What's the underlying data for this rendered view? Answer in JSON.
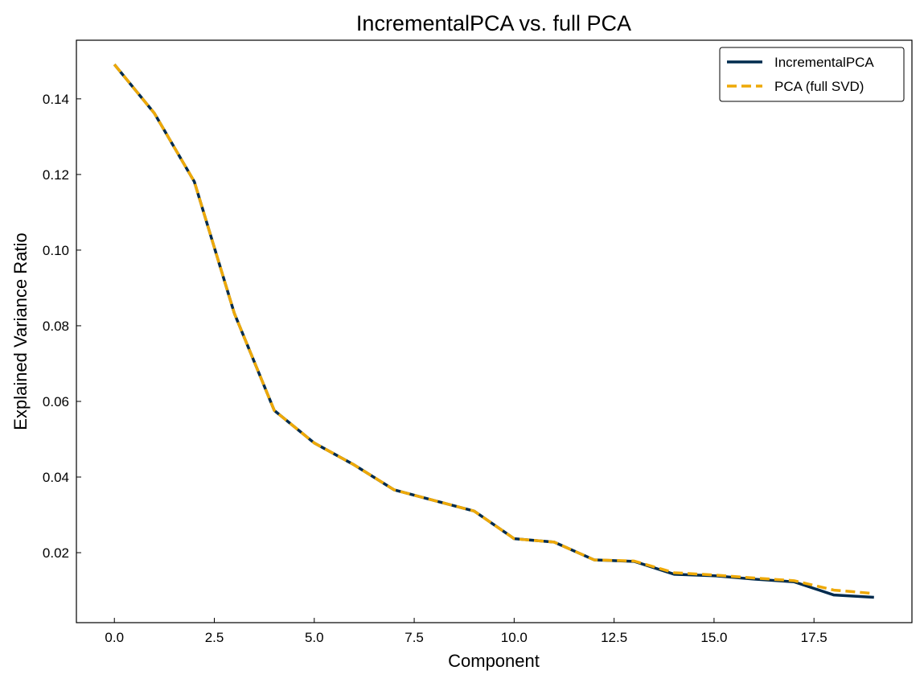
{
  "chart_data": {
    "type": "line",
    "title": "IncrementalPCA vs. full PCA",
    "xlabel": "Component",
    "ylabel": "Explained Variance Ratio",
    "xlim": [
      -0.95,
      19.95
    ],
    "ylim": [
      0.0015,
      0.1555
    ],
    "xticks": [
      0.0,
      2.5,
      5.0,
      7.5,
      10.0,
      12.5,
      15.0,
      17.5
    ],
    "xtick_labels": [
      "0.0",
      "2.5",
      "5.0",
      "7.5",
      "10.0",
      "12.5",
      "15.0",
      "17.5"
    ],
    "yticks": [
      0.02,
      0.04,
      0.06,
      0.08,
      0.1,
      0.12,
      0.14
    ],
    "ytick_labels": [
      "0.02",
      "0.04",
      "0.06",
      "0.08",
      "0.10",
      "0.12",
      "0.14"
    ],
    "tick_direction": "in",
    "grid": false,
    "legend_position": "top-right",
    "x": [
      0,
      1,
      2,
      3,
      4,
      5,
      6,
      7,
      8,
      9,
      10,
      11,
      12,
      13,
      14,
      15,
      16,
      17,
      18,
      19
    ],
    "series": [
      {
        "name": "IncrementalPCA",
        "color": "#002B4E",
        "style": "solid",
        "values": [
          0.1491,
          0.1362,
          0.1181,
          0.0833,
          0.0576,
          0.049,
          0.0432,
          0.0366,
          0.0338,
          0.031,
          0.0237,
          0.0228,
          0.0181,
          0.0177,
          0.0143,
          0.0139,
          0.013,
          0.0123,
          0.0088,
          0.0082
        ]
      },
      {
        "name": "PCA (full SVD)",
        "color": "#EEA907",
        "style": "dashed",
        "values": [
          0.1491,
          0.1362,
          0.1181,
          0.0833,
          0.0576,
          0.049,
          0.0432,
          0.0366,
          0.0338,
          0.031,
          0.0237,
          0.0228,
          0.0181,
          0.0178,
          0.0147,
          0.0141,
          0.0133,
          0.0126,
          0.0101,
          0.0092
        ]
      }
    ]
  }
}
